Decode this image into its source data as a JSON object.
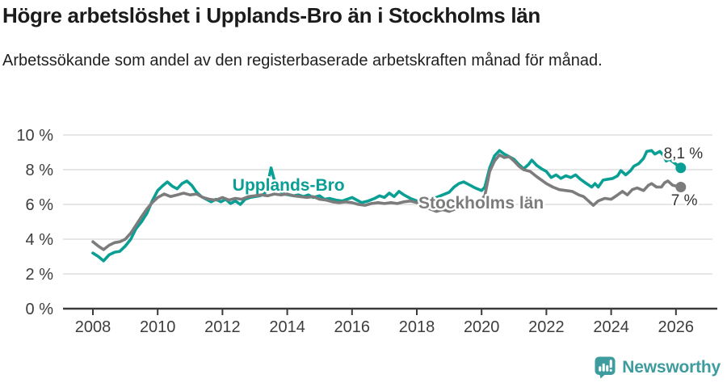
{
  "header": {
    "title": "Högre arbetslöshet i Upplands-Bro än i Stockholms län",
    "subtitle": "Arbetssökande som andel av den registerbaserade arbetskraften månad för månad."
  },
  "colors": {
    "teal": "#0a9f94",
    "gray": "#7c7c7c",
    "grid": "#d8d8d8",
    "axis": "#3a3a3a",
    "tick_text": "#3d3d3d",
    "annotation_text": "#333333",
    "logo": "#3e9c9e"
  },
  "footer": {
    "brand": "Newsworthy",
    "logo_icon": "newsworthy-speech-bubble-bar-chart-icon"
  },
  "chart_data": {
    "type": "line",
    "title": "Högre arbetslöshet i Upplands-Bro än i Stockholms län",
    "xlabel": "",
    "ylabel": "",
    "grid": true,
    "legend_position": "inline-labels",
    "x_axis": {
      "ticks": [
        2008,
        2010,
        2012,
        2014,
        2016,
        2018,
        2020,
        2022,
        2024,
        2026
      ],
      "range": [
        2007.1,
        2027.3
      ]
    },
    "y_axis": {
      "values": [
        0,
        2,
        4,
        6,
        8,
        10
      ],
      "tick_labels": [
        "0 %",
        "2 %",
        "4 %",
        "6 %",
        "8 %",
        "10 %"
      ],
      "range": [
        0,
        11.3
      ]
    },
    "series": [
      {
        "id": "upplands-bro",
        "name": "Upplands-Bro",
        "color": "#0a9f94",
        "inline_label": {
          "text": "Upplands-Bro",
          "x": 2012.31,
          "y": 6.8
        },
        "end_label": {
          "text": "8,1 %",
          "x": 2025.62,
          "y": 8.65
        },
        "end_value": "8,1 %",
        "points": [
          [
            2008.0,
            3.2
          ],
          [
            2008.17,
            3.0
          ],
          [
            2008.33,
            2.75
          ],
          [
            2008.5,
            3.1
          ],
          [
            2008.67,
            3.25
          ],
          [
            2008.83,
            3.3
          ],
          [
            2009.0,
            3.6
          ],
          [
            2009.17,
            4.0
          ],
          [
            2009.33,
            4.6
          ],
          [
            2009.5,
            5.0
          ],
          [
            2009.67,
            5.5
          ],
          [
            2009.83,
            6.2
          ],
          [
            2010.0,
            6.8
          ],
          [
            2010.17,
            7.1
          ],
          [
            2010.3,
            7.3
          ],
          [
            2010.45,
            7.05
          ],
          [
            2010.6,
            6.9
          ],
          [
            2010.75,
            7.2
          ],
          [
            2010.9,
            7.35
          ],
          [
            2011.05,
            7.1
          ],
          [
            2011.2,
            6.7
          ],
          [
            2011.35,
            6.45
          ],
          [
            2011.5,
            6.3
          ],
          [
            2011.65,
            6.15
          ],
          [
            2011.8,
            6.3
          ],
          [
            2011.95,
            6.15
          ],
          [
            2012.1,
            6.3
          ],
          [
            2012.25,
            6.05
          ],
          [
            2012.4,
            6.2
          ],
          [
            2012.55,
            6.0
          ],
          [
            2012.7,
            6.3
          ],
          [
            2012.85,
            6.4
          ],
          [
            2013.0,
            6.45
          ],
          [
            2013.15,
            6.5
          ],
          [
            2013.3,
            6.6
          ],
          [
            2013.4,
            7.2
          ],
          [
            2013.5,
            8.1
          ],
          [
            2013.6,
            7.4
          ],
          [
            2013.75,
            6.8
          ],
          [
            2013.9,
            6.6
          ],
          [
            2014.05,
            6.55
          ],
          [
            2014.2,
            6.5
          ],
          [
            2014.35,
            6.55
          ],
          [
            2014.5,
            6.45
          ],
          [
            2014.65,
            6.55
          ],
          [
            2014.8,
            6.4
          ],
          [
            2015.0,
            6.5
          ],
          [
            2015.15,
            6.3
          ],
          [
            2015.3,
            6.35
          ],
          [
            2015.5,
            6.25
          ],
          [
            2015.7,
            6.2
          ],
          [
            2015.85,
            6.3
          ],
          [
            2016.0,
            6.4
          ],
          [
            2016.15,
            6.25
          ],
          [
            2016.3,
            6.1
          ],
          [
            2016.5,
            6.2
          ],
          [
            2016.7,
            6.35
          ],
          [
            2016.85,
            6.5
          ],
          [
            2017.0,
            6.4
          ],
          [
            2017.15,
            6.65
          ],
          [
            2017.3,
            6.45
          ],
          [
            2017.45,
            6.75
          ],
          [
            2017.6,
            6.55
          ],
          [
            2017.8,
            6.35
          ],
          [
            2018.0,
            6.2
          ],
          [
            2018.2,
            6.1
          ],
          [
            2018.4,
            6.25
          ],
          [
            2018.6,
            6.4
          ],
          [
            2018.8,
            6.55
          ],
          [
            2019.0,
            6.7
          ],
          [
            2019.15,
            7.0
          ],
          [
            2019.3,
            7.2
          ],
          [
            2019.45,
            7.3
          ],
          [
            2019.6,
            7.15
          ],
          [
            2019.8,
            6.95
          ],
          [
            2020.0,
            6.8
          ],
          [
            2020.1,
            7.0
          ],
          [
            2020.25,
            8.1
          ],
          [
            2020.4,
            8.8
          ],
          [
            2020.55,
            9.1
          ],
          [
            2020.7,
            8.9
          ],
          [
            2020.85,
            8.75
          ],
          [
            2021.0,
            8.6
          ],
          [
            2021.15,
            8.3
          ],
          [
            2021.3,
            8.05
          ],
          [
            2021.45,
            8.3
          ],
          [
            2021.55,
            8.55
          ],
          [
            2021.7,
            8.25
          ],
          [
            2021.85,
            8.05
          ],
          [
            2022.0,
            7.9
          ],
          [
            2022.15,
            7.55
          ],
          [
            2022.3,
            7.7
          ],
          [
            2022.45,
            7.5
          ],
          [
            2022.6,
            7.65
          ],
          [
            2022.75,
            7.55
          ],
          [
            2022.9,
            7.7
          ],
          [
            2023.05,
            7.45
          ],
          [
            2023.2,
            7.25
          ],
          [
            2023.4,
            7.0
          ],
          [
            2023.5,
            7.2
          ],
          [
            2023.6,
            7.0
          ],
          [
            2023.75,
            7.4
          ],
          [
            2023.9,
            7.45
          ],
          [
            2024.05,
            7.5
          ],
          [
            2024.2,
            7.65
          ],
          [
            2024.3,
            7.95
          ],
          [
            2024.45,
            7.7
          ],
          [
            2024.6,
            7.95
          ],
          [
            2024.7,
            8.2
          ],
          [
            2024.85,
            8.35
          ],
          [
            2025.0,
            8.65
          ],
          [
            2025.1,
            9.05
          ],
          [
            2025.25,
            9.1
          ],
          [
            2025.35,
            8.9
          ],
          [
            2025.5,
            9.05
          ],
          [
            2025.6,
            8.85
          ],
          [
            2025.7,
            8.5
          ],
          [
            2025.8,
            8.6
          ],
          [
            2026.15,
            8.1
          ]
        ]
      },
      {
        "id": "stockholms-lan",
        "name": "Stockholms län",
        "color": "#7c7c7c",
        "inline_label": {
          "text": "Stockholms län",
          "x": 2018.05,
          "y": 5.77
        },
        "end_label": {
          "text": "7 %",
          "x": 2025.85,
          "y": 5.95
        },
        "end_value": "7 %",
        "points": [
          [
            2008.0,
            3.85
          ],
          [
            2008.17,
            3.6
          ],
          [
            2008.33,
            3.4
          ],
          [
            2008.5,
            3.65
          ],
          [
            2008.67,
            3.8
          ],
          [
            2008.83,
            3.85
          ],
          [
            2009.0,
            4.0
          ],
          [
            2009.17,
            4.35
          ],
          [
            2009.33,
            4.8
          ],
          [
            2009.5,
            5.3
          ],
          [
            2009.67,
            5.75
          ],
          [
            2009.83,
            6.1
          ],
          [
            2010.0,
            6.4
          ],
          [
            2010.2,
            6.6
          ],
          [
            2010.4,
            6.45
          ],
          [
            2010.6,
            6.55
          ],
          [
            2010.8,
            6.65
          ],
          [
            2011.0,
            6.55
          ],
          [
            2011.2,
            6.6
          ],
          [
            2011.4,
            6.4
          ],
          [
            2011.6,
            6.3
          ],
          [
            2011.8,
            6.25
          ],
          [
            2012.0,
            6.4
          ],
          [
            2012.2,
            6.25
          ],
          [
            2012.4,
            6.35
          ],
          [
            2012.6,
            6.3
          ],
          [
            2012.8,
            6.45
          ],
          [
            2013.0,
            6.5
          ],
          [
            2013.2,
            6.55
          ],
          [
            2013.4,
            6.5
          ],
          [
            2013.6,
            6.6
          ],
          [
            2013.8,
            6.55
          ],
          [
            2014.0,
            6.6
          ],
          [
            2014.2,
            6.5
          ],
          [
            2014.4,
            6.45
          ],
          [
            2014.6,
            6.4
          ],
          [
            2014.8,
            6.45
          ],
          [
            2015.0,
            6.3
          ],
          [
            2015.2,
            6.25
          ],
          [
            2015.4,
            6.15
          ],
          [
            2015.6,
            6.1
          ],
          [
            2015.8,
            6.15
          ],
          [
            2016.0,
            6.1
          ],
          [
            2016.2,
            6.0
          ],
          [
            2016.4,
            5.95
          ],
          [
            2016.6,
            6.05
          ],
          [
            2016.8,
            6.1
          ],
          [
            2017.0,
            6.05
          ],
          [
            2017.2,
            6.1
          ],
          [
            2017.4,
            6.05
          ],
          [
            2017.6,
            6.15
          ],
          [
            2017.8,
            6.2
          ],
          [
            2018.0,
            6.1
          ],
          [
            2018.2,
            5.9
          ],
          [
            2018.4,
            5.75
          ],
          [
            2018.6,
            5.6
          ],
          [
            2018.8,
            5.7
          ],
          [
            2019.0,
            5.6
          ],
          [
            2019.2,
            5.75
          ],
          [
            2019.4,
            5.9
          ],
          [
            2019.6,
            6.0
          ],
          [
            2019.8,
            6.15
          ],
          [
            2020.0,
            6.3
          ],
          [
            2020.1,
            6.5
          ],
          [
            2020.25,
            7.9
          ],
          [
            2020.4,
            8.5
          ],
          [
            2020.55,
            8.85
          ],
          [
            2020.7,
            8.7
          ],
          [
            2020.85,
            8.75
          ],
          [
            2021.0,
            8.5
          ],
          [
            2021.15,
            8.2
          ],
          [
            2021.3,
            8.0
          ],
          [
            2021.5,
            7.9
          ],
          [
            2021.7,
            7.6
          ],
          [
            2021.85,
            7.4
          ],
          [
            2022.0,
            7.2
          ],
          [
            2022.2,
            7.0
          ],
          [
            2022.4,
            6.85
          ],
          [
            2022.6,
            6.8
          ],
          [
            2022.8,
            6.75
          ],
          [
            2023.0,
            6.55
          ],
          [
            2023.15,
            6.45
          ],
          [
            2023.3,
            6.2
          ],
          [
            2023.45,
            5.95
          ],
          [
            2023.6,
            6.2
          ],
          [
            2023.8,
            6.35
          ],
          [
            2024.0,
            6.3
          ],
          [
            2024.2,
            6.55
          ],
          [
            2024.35,
            6.75
          ],
          [
            2024.5,
            6.55
          ],
          [
            2024.65,
            6.85
          ],
          [
            2024.8,
            6.95
          ],
          [
            2025.0,
            6.8
          ],
          [
            2025.15,
            7.1
          ],
          [
            2025.25,
            7.2
          ],
          [
            2025.4,
            7.0
          ],
          [
            2025.55,
            7.0
          ],
          [
            2025.65,
            7.25
          ],
          [
            2025.75,
            7.35
          ],
          [
            2025.9,
            7.1
          ],
          [
            2026.15,
            7.0
          ]
        ]
      }
    ]
  }
}
